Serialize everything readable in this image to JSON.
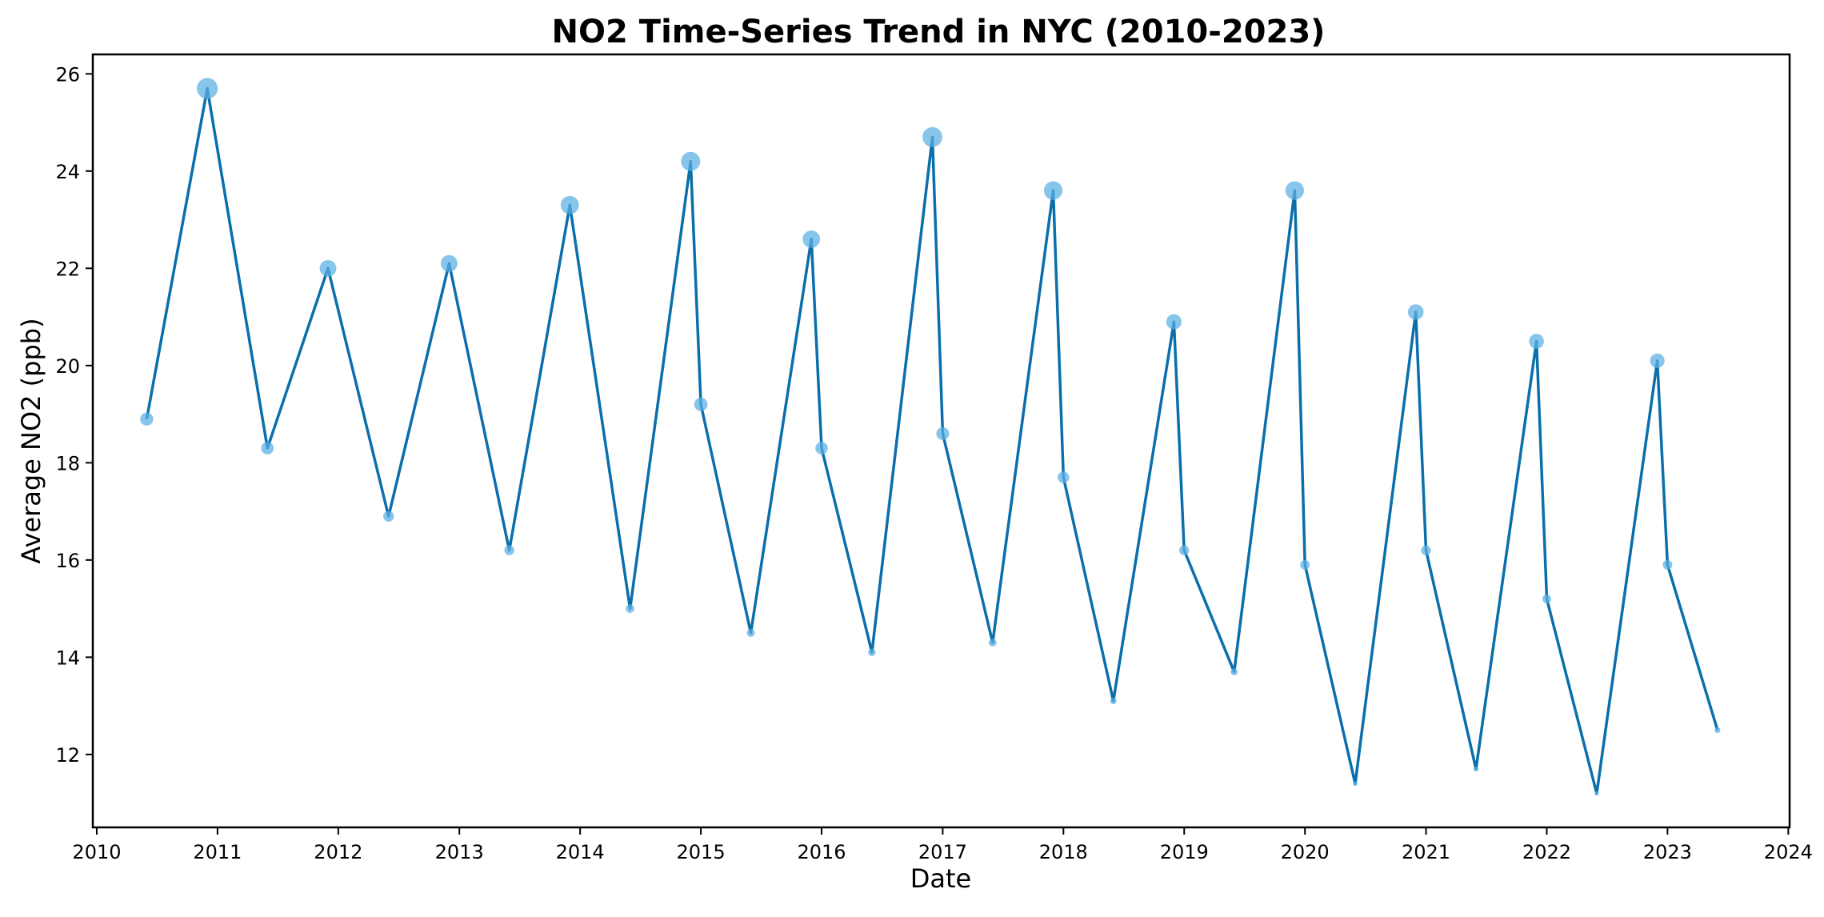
{
  "chart_data": {
    "type": "line",
    "title": "NO2 Time-Series Trend in NYC (2010-2023)",
    "xlabel": "Date",
    "ylabel": "Average NO2 (ppb)",
    "x_ticks": [
      "2010",
      "2011",
      "2012",
      "2013",
      "2014",
      "2015",
      "2016",
      "2017",
      "2018",
      "2019",
      "2020",
      "2021",
      "2022",
      "2023",
      "2024"
    ],
    "y_ticks": [
      "12",
      "14",
      "16",
      "18",
      "20",
      "22",
      "24",
      "26"
    ],
    "xlim": [
      "2009-12-20",
      "2024-01-05"
    ],
    "ylim": [
      10.5,
      26.4
    ],
    "grid": false,
    "legend": false,
    "line_color": "#0a6fab",
    "marker_color": "#5aaee3",
    "marker_size": "scales with value",
    "series": [
      {
        "x": [
          "2010-06-01",
          "2010-12-01",
          "2011-06-01",
          "2011-12-01",
          "2012-06-01",
          "2012-12-01",
          "2013-06-01",
          "2013-12-01",
          "2014-06-01",
          "2014-12-01",
          "2015-01-01",
          "2015-06-01",
          "2015-12-01",
          "2016-01-01",
          "2016-06-01",
          "2016-12-01",
          "2017-01-01",
          "2017-06-01",
          "2017-12-01",
          "2018-01-01",
          "2018-06-01",
          "2018-12-01",
          "2019-01-01",
          "2019-06-01",
          "2019-12-01",
          "2020-01-01",
          "2020-06-01",
          "2020-12-01",
          "2021-01-01",
          "2021-06-01",
          "2021-12-01",
          "2022-01-01",
          "2022-06-01",
          "2022-12-01",
          "2023-01-01",
          "2023-06-01"
        ],
        "values": [
          18.9,
          25.7,
          18.3,
          22.0,
          16.9,
          22.1,
          16.2,
          23.3,
          15.0,
          24.2,
          19.2,
          14.5,
          22.6,
          18.3,
          14.1,
          24.7,
          18.6,
          14.3,
          23.6,
          17.7,
          13.1,
          20.9,
          16.2,
          13.7,
          23.6,
          15.9,
          11.4,
          21.1,
          16.2,
          11.7,
          20.5,
          15.2,
          11.2,
          20.1,
          15.9,
          12.5
        ]
      }
    ]
  }
}
